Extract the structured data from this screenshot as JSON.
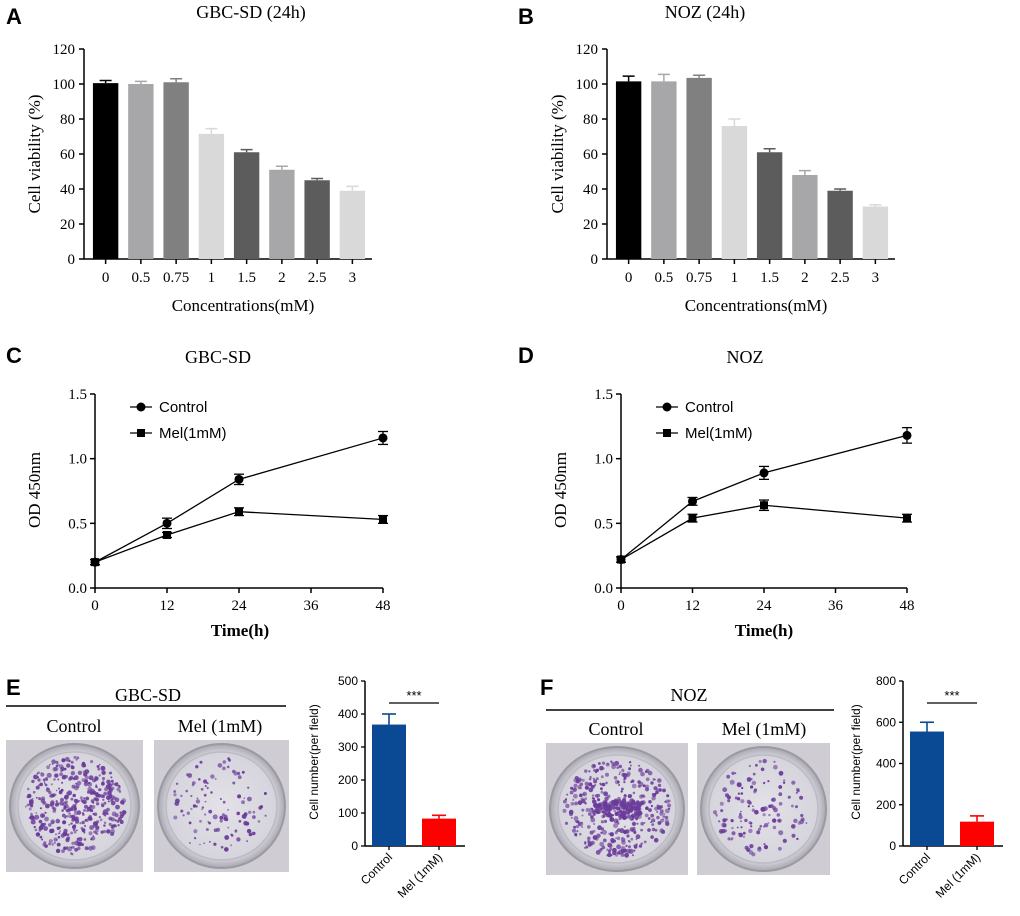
{
  "colors": {
    "black": "#000000",
    "bar_control_blue": "#0a4a95",
    "bar_mel_red": "#ff0000",
    "grey_palette": [
      "#000000",
      "#a7a7a9",
      "#808080",
      "#d9d9d9",
      "#5c5c5c",
      "#a7a7a9",
      "#5c5c5c",
      "#d9d9d9"
    ],
    "colony_purple": "#6a3c9a",
    "dish_bg": "#d8d6dc"
  },
  "panel_labels": [
    "A",
    "B",
    "C",
    "D",
    "E",
    "F"
  ],
  "chart_data": [
    {
      "panel": "A",
      "type": "bar",
      "title": "GBC-SD (24h)",
      "xlabel": "Concentrations(mM)",
      "ylabel": "Cell viability (%)",
      "categories": [
        "0",
        "0.5",
        "0.75",
        "1",
        "1.5",
        "2",
        "2.5",
        "3"
      ],
      "values": [
        100.5,
        100,
        101,
        71.5,
        61,
        51,
        45,
        39
      ],
      "errors": [
        1.5,
        1.5,
        2,
        3,
        1.5,
        2,
        1,
        2.5
      ],
      "ylim": [
        0,
        120
      ],
      "yticks": [
        "0",
        "20",
        "40",
        "60",
        "80",
        "100",
        "120"
      ]
    },
    {
      "panel": "B",
      "type": "bar",
      "title": "NOZ (24h)",
      "xlabel": "Concentrations(mM)",
      "ylabel": "Cell viability (%)",
      "categories": [
        "0",
        "0.5",
        "0.75",
        "1",
        "1.5",
        "2",
        "2.5",
        "3"
      ],
      "values": [
        101.5,
        101.5,
        103.5,
        76,
        61,
        48,
        39,
        30
      ],
      "errors": [
        3,
        4,
        1.5,
        4,
        2,
        2.5,
        1,
        1
      ],
      "ylim": [
        0,
        120
      ],
      "yticks": [
        "0",
        "20",
        "40",
        "60",
        "80",
        "100",
        "120"
      ]
    },
    {
      "panel": "C",
      "type": "line",
      "title": "GBC-SD",
      "xlabel": "Time(h)",
      "ylabel": "OD 450nm",
      "x": [
        0,
        12,
        24,
        48
      ],
      "xticks": [
        "0",
        "12",
        "24",
        "36",
        "48"
      ],
      "yticks": [
        "0.0",
        "0.5",
        "1.0",
        "1.5"
      ],
      "xlim": [
        0,
        48
      ],
      "ylim": [
        0,
        1.5
      ],
      "series": [
        {
          "name": "Control",
          "marker": "circle",
          "values": [
            0.2,
            0.5,
            0.84,
            1.16
          ],
          "errors": [
            0.02,
            0.04,
            0.04,
            0.05
          ]
        },
        {
          "name": "Mel(1mM)",
          "marker": "square",
          "values": [
            0.2,
            0.41,
            0.59,
            0.53
          ],
          "errors": [
            0.02,
            0.02,
            0.03,
            0.03
          ]
        }
      ]
    },
    {
      "panel": "D",
      "type": "line",
      "title": "NOZ",
      "xlabel": "Time(h)",
      "ylabel": "OD 450nm",
      "x": [
        0,
        12,
        24,
        48
      ],
      "xticks": [
        "0",
        "12",
        "24",
        "36",
        "48"
      ],
      "yticks": [
        "0.0",
        "0.5",
        "1.0",
        "1.5"
      ],
      "xlim": [
        0,
        48
      ],
      "ylim": [
        0,
        1.5
      ],
      "series": [
        {
          "name": "Control",
          "marker": "circle",
          "values": [
            0.22,
            0.67,
            0.89,
            1.18
          ],
          "errors": [
            0.02,
            0.03,
            0.05,
            0.06
          ]
        },
        {
          "name": "Mel(1mM)",
          "marker": "square",
          "values": [
            0.22,
            0.54,
            0.64,
            0.54
          ],
          "errors": [
            0.02,
            0.03,
            0.04,
            0.03
          ]
        }
      ]
    },
    {
      "panel": "E",
      "type": "bar",
      "group_title": "GBC-SD",
      "image_labels": [
        "Control",
        "Mel (1mM)"
      ],
      "ylabel": "Cell number(per field)",
      "categories": [
        "Control",
        "Mel (1mM)"
      ],
      "values": [
        368,
        83
      ],
      "errors": [
        32,
        10
      ],
      "ylim": [
        0,
        500
      ],
      "yticks": [
        "0",
        "100",
        "200",
        "300",
        "400",
        "500"
      ],
      "significance": "***"
    },
    {
      "panel": "F",
      "type": "bar",
      "group_title": "NOZ",
      "image_labels": [
        "Control",
        "Mel (1mM)"
      ],
      "ylabel": "Cell number(per field)",
      "categories": [
        "Control",
        "Mel (1mM)"
      ],
      "values": [
        555,
        118
      ],
      "errors": [
        45,
        28
      ],
      "ylim": [
        0,
        800
      ],
      "yticks": [
        "0",
        "200",
        "400",
        "600",
        "800"
      ],
      "significance": "***"
    }
  ]
}
